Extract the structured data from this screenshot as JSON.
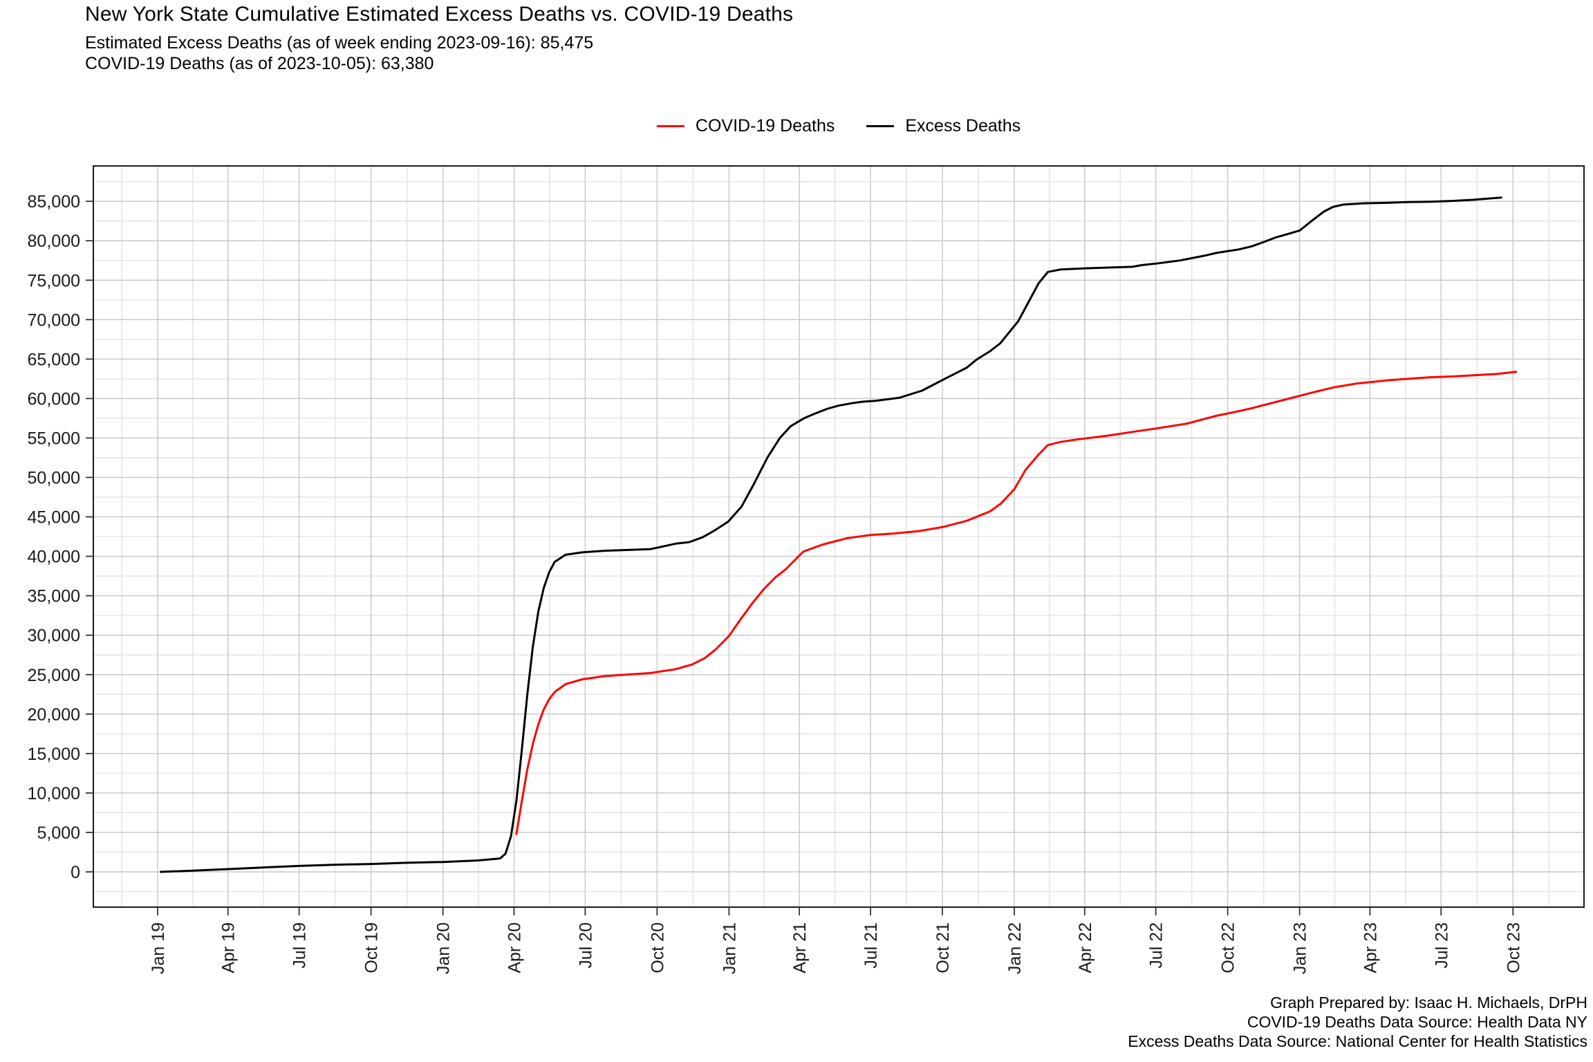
{
  "title": "New York State Cumulative Estimated Excess Deaths vs. COVID-19 Deaths",
  "subtitle1": "Estimated Excess Deaths (as of week ending 2023-09-16): 85,475",
  "subtitle2": "COVID-19 Deaths (as of 2023-10-05): 63,380",
  "legend": {
    "items": [
      {
        "label": "COVID-19 Deaths",
        "color": "#ff0000"
      },
      {
        "label": "Excess Deaths",
        "color": "#000000"
      }
    ]
  },
  "footer": {
    "line1": "Graph Prepared by: Isaac H. Michaels, DrPH",
    "line2": "COVID-19 Deaths Data Source: Health Data NY",
    "line3": "Excess Deaths Data Source: National Center for Health Statistics"
  },
  "chart_data": {
    "type": "line",
    "title": "New York State Cumulative Estimated Excess Deaths vs. COVID-19 Deaths",
    "xlabel": "",
    "ylabel": "",
    "grid": true,
    "legend_position": "top-center",
    "x_axis": {
      "kind": "date",
      "start": "2019-01-01",
      "end": "2023-10-01",
      "tick_interval": "3 months",
      "tick_labels": [
        "Jan 19",
        "Apr 19",
        "Jul 19",
        "Oct 19",
        "Jan 20",
        "Apr 20",
        "Jul 20",
        "Oct 20",
        "Jan 21",
        "Apr 21",
        "Jul 21",
        "Oct 21",
        "Jan 22",
        "Apr 22",
        "Jul 22",
        "Oct 22",
        "Jan 23",
        "Apr 23",
        "Jul 23",
        "Oct 23"
      ],
      "label_rotation_deg": 90
    },
    "y_axis": {
      "tick_values": [
        0,
        5000,
        10000,
        15000,
        20000,
        25000,
        30000,
        35000,
        40000,
        45000,
        50000,
        55000,
        60000,
        65000,
        70000,
        75000,
        80000,
        85000
      ],
      "tick_labels": [
        "0",
        "5,000",
        "10,000",
        "15,000",
        "20,000",
        "25,000",
        "30,000",
        "35,000",
        "40,000",
        "45,000",
        "50,000",
        "55,000",
        "60,000",
        "65,000",
        "70,000",
        "75,000",
        "80,000",
        "85,000"
      ],
      "minor_tick_step": 2500,
      "range": [
        -4300,
        89400
      ]
    },
    "series": [
      {
        "name": "Excess Deaths",
        "color": "#000000",
        "final_point": {
          "date": "2023-09-16",
          "value": 85475
        },
        "points": [
          [
            "2019-01-05",
            0
          ],
          [
            "2019-02-15",
            150
          ],
          [
            "2019-04-01",
            350
          ],
          [
            "2019-05-15",
            550
          ],
          [
            "2019-07-01",
            750
          ],
          [
            "2019-08-15",
            900
          ],
          [
            "2019-10-01",
            1000
          ],
          [
            "2019-11-15",
            1150
          ],
          [
            "2020-01-01",
            1250
          ],
          [
            "2020-02-15",
            1450
          ],
          [
            "2020-03-14",
            1700
          ],
          [
            "2020-03-21",
            2300
          ],
          [
            "2020-03-28",
            4500
          ],
          [
            "2020-04-04",
            9000
          ],
          [
            "2020-04-11",
            15500
          ],
          [
            "2020-04-18",
            22500
          ],
          [
            "2020-04-25",
            28500
          ],
          [
            "2020-05-02",
            33000
          ],
          [
            "2020-05-09",
            36000
          ],
          [
            "2020-05-16",
            38000
          ],
          [
            "2020-05-23",
            39300
          ],
          [
            "2020-06-06",
            40200
          ],
          [
            "2020-06-27",
            40500
          ],
          [
            "2020-07-25",
            40700
          ],
          [
            "2020-08-22",
            40800
          ],
          [
            "2020-09-22",
            40900
          ],
          [
            "2020-10-25",
            41600
          ],
          [
            "2020-11-11",
            41800
          ],
          [
            "2020-11-28",
            42400
          ],
          [
            "2020-12-14",
            43300
          ],
          [
            "2020-12-31",
            44400
          ],
          [
            "2021-01-17",
            46300
          ],
          [
            "2021-02-02",
            49200
          ],
          [
            "2021-02-19",
            52500
          ],
          [
            "2021-03-07",
            55000
          ],
          [
            "2021-03-21",
            56500
          ],
          [
            "2021-04-07",
            57500
          ],
          [
            "2021-04-21",
            58100
          ],
          [
            "2021-05-07",
            58700
          ],
          [
            "2021-05-21",
            59100
          ],
          [
            "2021-06-07",
            59400
          ],
          [
            "2021-06-21",
            59600
          ],
          [
            "2021-07-07",
            59700
          ],
          [
            "2021-08-07",
            60100
          ],
          [
            "2021-09-05",
            61000
          ],
          [
            "2021-10-04",
            62500
          ],
          [
            "2021-11-01",
            63900
          ],
          [
            "2021-11-14",
            64950
          ],
          [
            "2021-12-01",
            66000
          ],
          [
            "2021-12-14",
            67000
          ],
          [
            "2022-01-06",
            69800
          ],
          [
            "2022-01-18",
            72000
          ],
          [
            "2022-02-01",
            74600
          ],
          [
            "2022-02-13",
            76050
          ],
          [
            "2022-03-01",
            76350
          ],
          [
            "2022-04-01",
            76500
          ],
          [
            "2022-05-01",
            76600
          ],
          [
            "2022-06-01",
            76700
          ],
          [
            "2022-06-12",
            76900
          ],
          [
            "2022-07-01",
            77100
          ],
          [
            "2022-08-01",
            77500
          ],
          [
            "2022-09-01",
            78100
          ],
          [
            "2022-09-16",
            78450
          ],
          [
            "2022-10-15",
            78900
          ],
          [
            "2022-11-01",
            79300
          ],
          [
            "2022-11-15",
            79800
          ],
          [
            "2022-12-01",
            80400
          ],
          [
            "2022-12-15",
            80800
          ],
          [
            "2023-01-01",
            81300
          ],
          [
            "2023-01-15",
            82400
          ],
          [
            "2023-02-01",
            83700
          ],
          [
            "2023-02-13",
            84300
          ],
          [
            "2023-02-27",
            84600
          ],
          [
            "2023-03-25",
            84750
          ],
          [
            "2023-04-22",
            84800
          ],
          [
            "2023-05-20",
            84900
          ],
          [
            "2023-06-17",
            84950
          ],
          [
            "2023-07-15",
            85050
          ],
          [
            "2023-08-12",
            85200
          ],
          [
            "2023-09-16",
            85475
          ]
        ]
      },
      {
        "name": "COVID-19 Deaths",
        "color": "#ff0000",
        "final_point": {
          "date": "2023-10-05",
          "value": 63380
        },
        "points": [
          [
            "2020-04-04",
            4800
          ],
          [
            "2020-04-11",
            9000
          ],
          [
            "2020-04-18",
            13000
          ],
          [
            "2020-04-25",
            16200
          ],
          [
            "2020-05-02",
            18700
          ],
          [
            "2020-05-09",
            20600
          ],
          [
            "2020-05-16",
            21900
          ],
          [
            "2020-05-23",
            22800
          ],
          [
            "2020-06-06",
            23800
          ],
          [
            "2020-06-27",
            24400
          ],
          [
            "2020-07-25",
            24800
          ],
          [
            "2020-08-22",
            25000
          ],
          [
            "2020-09-22",
            25200
          ],
          [
            "2020-10-25",
            25700
          ],
          [
            "2020-11-15",
            26300
          ],
          [
            "2020-12-01",
            27100
          ],
          [
            "2020-12-15",
            28200
          ],
          [
            "2021-01-01",
            29900
          ],
          [
            "2021-01-15",
            31900
          ],
          [
            "2021-02-01",
            34200
          ],
          [
            "2021-02-15",
            35900
          ],
          [
            "2021-03-01",
            37300
          ],
          [
            "2021-03-15",
            38400
          ],
          [
            "2021-04-06",
            40600
          ],
          [
            "2021-05-01",
            41500
          ],
          [
            "2021-06-01",
            42300
          ],
          [
            "2021-07-01",
            42700
          ],
          [
            "2021-08-01",
            42900
          ],
          [
            "2021-09-01",
            43200
          ],
          [
            "2021-10-01",
            43700
          ],
          [
            "2021-11-01",
            44500
          ],
          [
            "2021-12-01",
            45700
          ],
          [
            "2021-12-15",
            46700
          ],
          [
            "2022-01-01",
            48500
          ],
          [
            "2022-01-15",
            50900
          ],
          [
            "2022-02-01",
            52900
          ],
          [
            "2022-02-13",
            54100
          ],
          [
            "2022-03-01",
            54500
          ],
          [
            "2022-03-22",
            54800
          ],
          [
            "2022-05-01",
            55300
          ],
          [
            "2022-06-10",
            55900
          ],
          [
            "2022-07-01",
            56200
          ],
          [
            "2022-08-09",
            56800
          ],
          [
            "2022-09-16",
            57800
          ],
          [
            "2022-10-15",
            58400
          ],
          [
            "2022-11-02",
            58800
          ],
          [
            "2022-12-15",
            59900
          ],
          [
            "2023-01-15",
            60700
          ],
          [
            "2023-02-13",
            61400
          ],
          [
            "2023-03-15",
            61900
          ],
          [
            "2023-04-22",
            62300
          ],
          [
            "2023-05-20",
            62500
          ],
          [
            "2023-06-17",
            62700
          ],
          [
            "2023-07-15",
            62800
          ],
          [
            "2023-08-12",
            62950
          ],
          [
            "2023-09-09",
            63100
          ],
          [
            "2023-10-05",
            63380
          ]
        ]
      }
    ],
    "style": {
      "major_grid_color": "#c9c9c9",
      "minor_grid_color": "#e4e4e4",
      "panel_border_color": "#1a1a1a",
      "tick_color": "#333333",
      "background": "#ffffff",
      "line_width": 3
    }
  }
}
